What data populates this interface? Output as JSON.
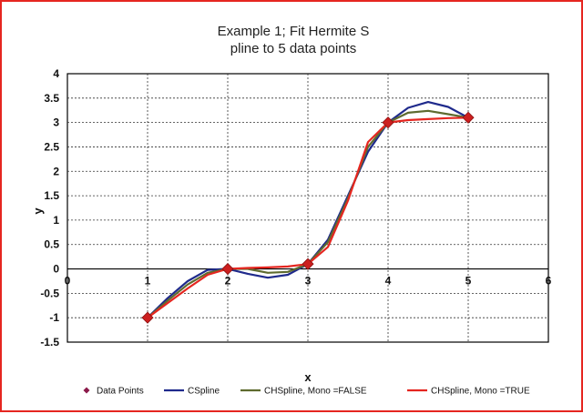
{
  "chart_data": {
    "type": "line",
    "title": [
      "Example 1; Fit Hermite S",
      "pline to 5 data points"
    ],
    "xlabel": "x",
    "ylabel": "y",
    "xlim": [
      0,
      6
    ],
    "ylim": [
      -1.5,
      4
    ],
    "xticks": [
      0,
      1,
      2,
      3,
      4,
      5,
      6
    ],
    "yticks": [
      -1.5,
      -1,
      -0.5,
      0,
      0.5,
      1,
      1.5,
      2,
      2.5,
      3,
      3.5,
      4
    ],
    "grid": true,
    "legend_position": "bottom",
    "series": [
      {
        "name": "Data Points",
        "kind": "markers",
        "color": "#cc1f1f",
        "x": [
          1,
          2,
          3,
          4,
          5
        ],
        "y": [
          -1,
          0,
          0.1,
          3,
          3.1
        ]
      },
      {
        "name": "CSpline",
        "kind": "line",
        "color": "#1f2a8c",
        "x": [
          1,
          1.25,
          1.5,
          1.75,
          2,
          2.25,
          2.5,
          2.75,
          3,
          3.25,
          3.5,
          3.75,
          4,
          4.25,
          4.5,
          4.75,
          5
        ],
        "y": [
          -1,
          -0.6,
          -0.25,
          -0.02,
          0,
          -0.1,
          -0.18,
          -0.12,
          0.1,
          0.6,
          1.5,
          2.4,
          3,
          3.3,
          3.42,
          3.32,
          3.1
        ]
      },
      {
        "name": "CHSpline, Mono =FALSE",
        "kind": "line",
        "color": "#5e6b2f",
        "x": [
          1,
          1.25,
          1.5,
          1.75,
          2,
          2.25,
          2.5,
          2.75,
          3,
          3.25,
          3.5,
          3.75,
          4,
          4.25,
          4.5,
          4.75,
          5
        ],
        "y": [
          -1,
          -0.65,
          -0.32,
          -0.08,
          0,
          0,
          -0.08,
          -0.06,
          0.1,
          0.55,
          1.45,
          2.5,
          3,
          3.2,
          3.24,
          3.17,
          3.1
        ]
      },
      {
        "name": "CHSpline, Mono =TRUE",
        "kind": "line",
        "color": "#e52620",
        "x": [
          1,
          1.25,
          1.5,
          1.75,
          2,
          2.25,
          2.5,
          2.75,
          3,
          3.25,
          3.5,
          3.75,
          4,
          4.25,
          4.5,
          4.75,
          5
        ],
        "y": [
          -1,
          -0.7,
          -0.4,
          -0.12,
          0,
          0.02,
          0.03,
          0.05,
          0.1,
          0.45,
          1.4,
          2.6,
          3,
          3.05,
          3.07,
          3.09,
          3.1
        ]
      }
    ]
  }
}
